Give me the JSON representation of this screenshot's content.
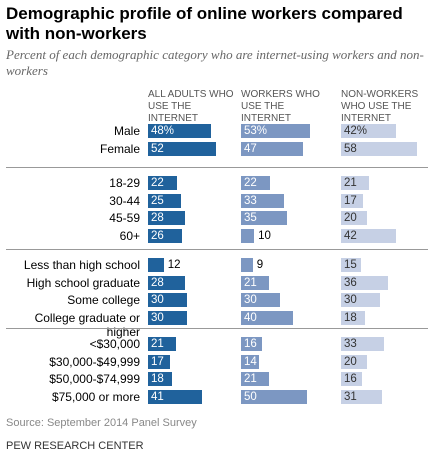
{
  "chart_data": {
    "type": "bar",
    "title": "Demographic profile of online workers compared with non-workers",
    "subtitle": "Percent of each demographic category who are internet-using workers and non-workers",
    "category_groups": [
      [
        "Male",
        "Female"
      ],
      [
        "18-29",
        "30-44",
        "45-59",
        "60+"
      ],
      [
        "Less than high school",
        "High school graduate",
        "Some college",
        "College graduate or higher"
      ],
      [
        "<$30,000",
        "$30,000-$49,999",
        "$50,000-$74,999",
        "$75,000 or more"
      ]
    ],
    "series": [
      {
        "name": "ALL ADULTS WHO USE THE INTERNET",
        "color": "#20629c",
        "values": [
          48,
          52,
          22,
          25,
          28,
          26,
          12,
          28,
          30,
          30,
          21,
          17,
          18,
          41
        ],
        "value_labels": [
          "48%",
          "52",
          "22",
          "25",
          "28",
          "26",
          "12",
          "28",
          "30",
          "30",
          "21",
          "17",
          "18",
          "41"
        ]
      },
      {
        "name": "WORKERS WHO USE THE INTERNET",
        "color": "#7c97c2",
        "values": [
          53,
          47,
          22,
          33,
          35,
          10,
          9,
          21,
          30,
          40,
          16,
          14,
          21,
          50
        ],
        "value_labels": [
          "53%",
          "47",
          "22",
          "33",
          "35",
          "10",
          "9",
          "21",
          "30",
          "40",
          "16",
          "14",
          "21",
          "50"
        ]
      },
      {
        "name": "NON-WORKERS WHO USE THE INTERNET",
        "color": "#c6d0e5",
        "values": [
          42,
          58,
          21,
          17,
          20,
          42,
          15,
          36,
          30,
          18,
          33,
          20,
          16,
          31
        ],
        "value_labels": [
          "42%",
          "58",
          "21",
          "17",
          "20",
          "42",
          "15",
          "36",
          "30",
          "18",
          "33",
          "20",
          "16",
          "31"
        ]
      }
    ],
    "source": "Source: September 2014 Panel Survey",
    "credit": "PEW RESEARCH CENTER"
  }
}
